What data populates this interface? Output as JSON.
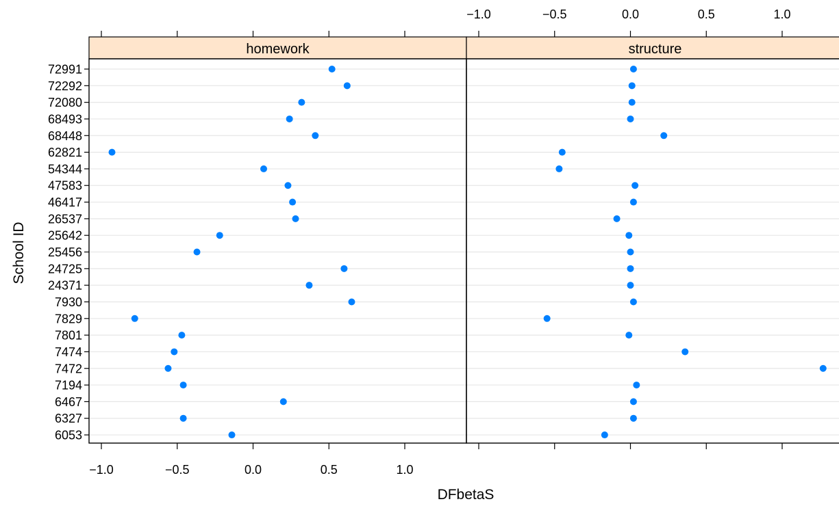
{
  "chart_data": {
    "type": "scatter",
    "subtype": "dotplot",
    "xlabel": "DFbetaS",
    "ylabel": "School ID",
    "xlim": [
      -1.0,
      1.3
    ],
    "x_ticks": [
      "−1.0",
      "−0.5",
      "0.0",
      "0.5",
      "1.0"
    ],
    "x_tick_values": [
      -1.0,
      -0.5,
      0.0,
      0.5,
      1.0
    ],
    "grid": "horizontal",
    "colors": {
      "point": "#0080ff",
      "strip_background": "#ffe5cc",
      "grid": "#e6e6e6",
      "frame": "#000000"
    },
    "categories": [
      "72991",
      "72292",
      "72080",
      "68493",
      "68448",
      "62821",
      "54344",
      "47583",
      "46417",
      "26537",
      "25642",
      "25456",
      "24725",
      "24371",
      "7930",
      "7829",
      "7801",
      "7474",
      "7472",
      "7194",
      "6467",
      "6327",
      "6053"
    ],
    "series": [
      {
        "name": "homework",
        "values": [
          0.52,
          0.62,
          0.32,
          0.24,
          0.41,
          -0.93,
          0.07,
          0.23,
          0.26,
          0.28,
          -0.22,
          -0.37,
          0.6,
          0.37,
          0.65,
          -0.78,
          -0.47,
          -0.52,
          -0.56,
          -0.46,
          0.2,
          -0.46,
          -0.14
        ]
      },
      {
        "name": "structure",
        "values": [
          0.02,
          0.01,
          0.01,
          0.0,
          0.22,
          -0.45,
          -0.47,
          0.03,
          0.02,
          -0.09,
          -0.01,
          0.0,
          0.0,
          0.0,
          0.02,
          -0.55,
          -0.01,
          0.36,
          1.27,
          0.04,
          0.02,
          0.02,
          -0.17
        ]
      }
    ]
  }
}
